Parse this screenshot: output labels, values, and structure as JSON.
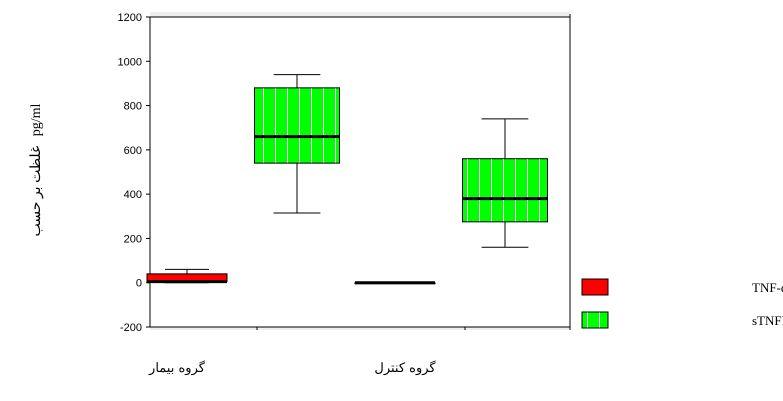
{
  "chart_data": {
    "type": "box",
    "y_axis": {
      "ylim": [
        -200,
        1200
      ],
      "ticks": [
        -200,
        0,
        200,
        400,
        600,
        800,
        1000,
        1200
      ],
      "tick_labels": [
        "-200",
        "0",
        "200",
        "400",
        "600",
        "800",
        "1000",
        "1200"
      ],
      "label_unit": "pg/ml",
      "label_text": "غلظت بر حسب"
    },
    "categories": [
      "گروه بیمار",
      "گروه کنترل"
    ],
    "series": [
      {
        "name": "غلظت TNF-α",
        "color": "#ff0000",
        "boxes": [
          {
            "category": "گروه بیمار",
            "min": 0,
            "q1": 5,
            "median": 5,
            "q3": 40,
            "max": 60
          },
          {
            "category": "گروه کنترل",
            "min": 0,
            "q1": 0,
            "median": 0,
            "q3": 0,
            "max": 0
          }
        ]
      },
      {
        "name": "غلظت sTNFRI",
        "color": "#00ff00",
        "pattern": "vertical-stripes",
        "boxes": [
          {
            "category": "گروه بیمار",
            "min": 315,
            "q1": 540,
            "median": 660,
            "q3": 880,
            "max": 940
          },
          {
            "category": "گروه کنترل",
            "min": 160,
            "q1": 275,
            "median": 380,
            "q3": 560,
            "max": 740
          }
        ]
      }
    ],
    "legend": {
      "placement": "right",
      "entries": [
        {
          "label": "غلظت TNF-α",
          "color": "#ff0000"
        },
        {
          "label": "غلظت sTNFRI",
          "color": "#00ff00"
        }
      ]
    },
    "grid": false
  }
}
